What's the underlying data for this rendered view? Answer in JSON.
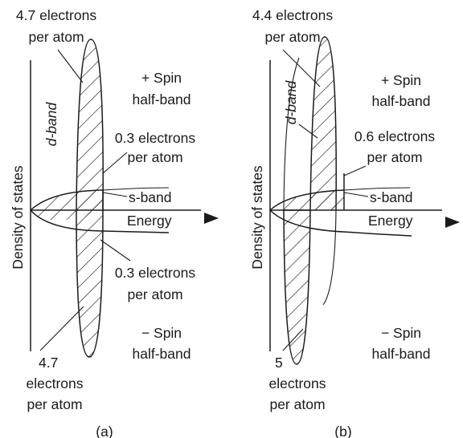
{
  "panels": [
    {
      "caption": "(a)",
      "axis_label": "Density of states",
      "dband": "d-band",
      "sband": "s-band",
      "energy": "Energy",
      "plus_spin_line1": "+ Spin",
      "plus_spin_line2": "half-band",
      "minus_spin_line1": "− Spin",
      "minus_spin_line2": "half-band",
      "top_d_line1": "4.7 electrons",
      "top_d_line2": "per atom",
      "top_s_line1": "0.3 electrons",
      "top_s_line2": "per atom",
      "bot_s_line1": "0.3 electrons",
      "bot_s_line2": "per atom",
      "bot_d_line1": "4.7",
      "bot_d_line2": "electrons",
      "bot_d_line3": "per atom"
    },
    {
      "caption": "(b)",
      "axis_label": "Density of states",
      "dband": "d-band",
      "sband": "s-band",
      "energy": "Energy",
      "plus_spin_line1": "+ Spin",
      "plus_spin_line2": "half-band",
      "minus_spin_line1": "− Spin",
      "minus_spin_line2": "half-band",
      "top_d_line1": "4.4 electrons",
      "top_d_line2": "per atom",
      "top_s_line1": "0.6 electrons",
      "top_s_line2": "per atom",
      "bot_d_line1": "5",
      "bot_d_line2": "electrons",
      "bot_d_line3": "per atom"
    }
  ],
  "colors": {
    "ink": "#1a1a1a",
    "background": "#ffffff"
  }
}
